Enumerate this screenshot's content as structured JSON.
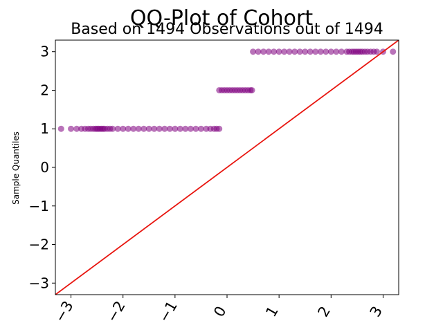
{
  "chart_data": {
    "type": "scatter",
    "title": "QQ-Plot of Cohort",
    "subtitle": "Based on 1494 Observations out of 1494",
    "xlabel": "",
    "ylabel": "Sample Quantiles",
    "xlim": [
      -3.3,
      3.3
    ],
    "ylim": [
      -3.3,
      3.3
    ],
    "xticks": [
      {
        "value": -3,
        "label": "−3"
      },
      {
        "value": -2,
        "label": "−2"
      },
      {
        "value": -1,
        "label": "−1"
      },
      {
        "value": 0,
        "label": "0"
      },
      {
        "value": 1,
        "label": "1"
      },
      {
        "value": 2,
        "label": "2"
      },
      {
        "value": 3,
        "label": "3"
      }
    ],
    "yticks": [
      {
        "value": 3,
        "label": "3"
      },
      {
        "value": 2,
        "label": "2"
      },
      {
        "value": 1,
        "label": "1"
      },
      {
        "value": 0,
        "label": "0"
      },
      {
        "value": -1,
        "label": "−1"
      },
      {
        "value": -2,
        "label": "−2"
      },
      {
        "value": -3,
        "label": "−3"
      }
    ],
    "grid": false,
    "point_color": "#800080",
    "point_alpha": 0.55,
    "line_color": "#e8150f",
    "reference_line": {
      "slope": 1,
      "intercept": 0
    },
    "series": [
      {
        "sample_value": 1,
        "theoretical_quantiles": [
          -3.19,
          -3.0,
          -2.89,
          -2.8,
          -2.73,
          -2.67,
          -2.62,
          -2.57,
          -2.53,
          -2.5,
          -2.47,
          -2.44,
          -2.41,
          -2.38,
          -2.35,
          -2.3,
          -2.25,
          -2.2,
          -2.1,
          -2.0,
          -1.9,
          -1.8,
          -1.7,
          -1.6,
          -1.5,
          -1.4,
          -1.3,
          -1.2,
          -1.1,
          -1.0,
          -0.9,
          -0.8,
          -0.7,
          -0.6,
          -0.5,
          -0.4,
          -0.32,
          -0.25,
          -0.2,
          -0.15
        ]
      },
      {
        "sample_value": 2,
        "theoretical_quantiles": [
          -0.15,
          -0.1,
          -0.05,
          0.0,
          0.05,
          0.1,
          0.15,
          0.2,
          0.25,
          0.3,
          0.35,
          0.4,
          0.45,
          0.48
        ]
      },
      {
        "sample_value": 3,
        "theoretical_quantiles": [
          0.5,
          0.6,
          0.7,
          0.8,
          0.9,
          1.0,
          1.1,
          1.2,
          1.3,
          1.4,
          1.5,
          1.6,
          1.7,
          1.8,
          1.9,
          2.0,
          2.1,
          2.2,
          2.3,
          2.35,
          2.4,
          2.44,
          2.48,
          2.52,
          2.56,
          2.6,
          2.65,
          2.7,
          2.76,
          2.82,
          2.88,
          3.0,
          3.19
        ]
      }
    ]
  }
}
